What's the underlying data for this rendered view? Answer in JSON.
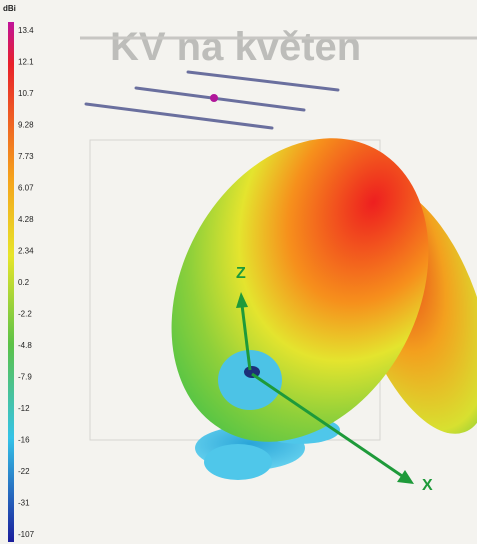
{
  "background_title": "KV na květen",
  "colorbar": {
    "unit": "dBi",
    "ticks": [
      "13.4",
      "12.1",
      "10.7",
      "9.28",
      "7.73",
      "6.07",
      "4.28",
      "2.34",
      "0.2",
      "-2.2",
      "-4.8",
      "-7.9",
      "-12",
      "-16",
      "-22",
      "-31",
      "-107"
    ]
  },
  "axes": {
    "z": "Z",
    "x": "X"
  }
}
